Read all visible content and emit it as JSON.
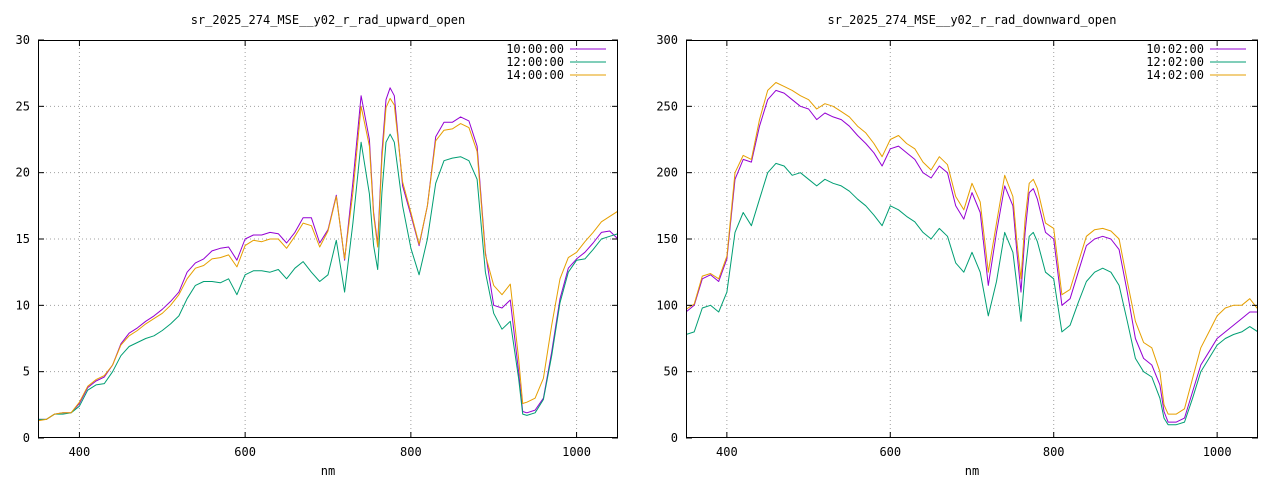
{
  "chart_data": [
    {
      "type": "line",
      "title": "sr_2025_274_MSE__y02_r_rad_upward_open",
      "xlabel": "nm",
      "ylabel": "",
      "xlim": [
        350,
        1050
      ],
      "ylim": [
        0,
        30
      ],
      "xticks": [
        400,
        600,
        800,
        1000
      ],
      "yticks": [
        0,
        5,
        10,
        15,
        20,
        25,
        30
      ],
      "grid": true,
      "legend": "top-right",
      "series": [
        {
          "name": "10:00:00",
          "color": "#9400d3",
          "x": [
            350,
            360,
            370,
            380,
            390,
            400,
            410,
            420,
            430,
            440,
            450,
            460,
            470,
            480,
            490,
            500,
            510,
            520,
            530,
            540,
            550,
            560,
            570,
            580,
            590,
            600,
            610,
            620,
            630,
            640,
            650,
            660,
            670,
            680,
            690,
            700,
            710,
            720,
            730,
            740,
            750,
            755,
            760,
            765,
            770,
            775,
            780,
            790,
            800,
            810,
            820,
            830,
            840,
            850,
            860,
            870,
            880,
            890,
            900,
            910,
            920,
            930,
            935,
            940,
            950,
            960,
            970,
            980,
            990,
            1000,
            1010,
            1020,
            1030,
            1040,
            1050
          ],
          "y": [
            1.4,
            1.4,
            1.8,
            1.9,
            1.9,
            2.6,
            3.8,
            4.3,
            4.6,
            5.5,
            7.1,
            7.9,
            8.3,
            8.8,
            9.2,
            9.7,
            10.3,
            11.0,
            12.5,
            13.2,
            13.5,
            14.1,
            14.3,
            14.4,
            13.4,
            15.0,
            15.3,
            15.3,
            15.5,
            15.4,
            14.7,
            15.5,
            16.6,
            16.6,
            14.7,
            15.7,
            18.3,
            13.4,
            19.3,
            25.8,
            22.5,
            17.0,
            14.6,
            21.5,
            25.5,
            26.4,
            25.8,
            19.0,
            16.8,
            14.5,
            17.5,
            22.7,
            23.8,
            23.8,
            24.2,
            23.9,
            22.0,
            14.0,
            10.0,
            9.8,
            10.4,
            5.0,
            2.0,
            1.9,
            2.1,
            3.0,
            6.5,
            10.5,
            12.8,
            13.5,
            14.0,
            14.7,
            15.5,
            15.6,
            15.0
          ]
        },
        {
          "name": "12:00:00",
          "color": "#009e73",
          "x": [
            350,
            360,
            370,
            380,
            390,
            400,
            410,
            420,
            430,
            440,
            450,
            460,
            470,
            480,
            490,
            500,
            510,
            520,
            530,
            540,
            550,
            560,
            570,
            580,
            590,
            600,
            610,
            620,
            630,
            640,
            650,
            660,
            670,
            680,
            690,
            700,
            710,
            720,
            730,
            740,
            750,
            755,
            760,
            765,
            770,
            775,
            780,
            790,
            800,
            810,
            820,
            830,
            840,
            850,
            860,
            870,
            880,
            890,
            900,
            910,
            920,
            930,
            935,
            940,
            950,
            960,
            970,
            980,
            990,
            1000,
            1010,
            1020,
            1030,
            1040,
            1050
          ],
          "y": [
            1.4,
            1.4,
            1.8,
            1.8,
            1.9,
            2.4,
            3.6,
            4.0,
            4.1,
            5.0,
            6.2,
            6.9,
            7.2,
            7.5,
            7.7,
            8.1,
            8.6,
            9.2,
            10.5,
            11.5,
            11.8,
            11.8,
            11.7,
            12.0,
            10.8,
            12.3,
            12.6,
            12.6,
            12.5,
            12.7,
            12.0,
            12.8,
            13.3,
            12.5,
            11.8,
            12.3,
            14.9,
            11.0,
            16.2,
            22.3,
            18.4,
            14.5,
            12.7,
            18.5,
            22.3,
            22.9,
            22.3,
            17.5,
            14.3,
            12.3,
            15.0,
            19.2,
            20.9,
            21.1,
            21.2,
            20.9,
            19.5,
            12.5,
            9.4,
            8.2,
            8.8,
            4.5,
            1.8,
            1.7,
            1.9,
            2.9,
            6.2,
            10.2,
            12.5,
            13.4,
            13.5,
            14.2,
            15.0,
            15.2,
            15.4
          ]
        },
        {
          "name": "14:00:00",
          "color": "#e69f00",
          "x": [
            350,
            360,
            370,
            380,
            390,
            400,
            410,
            420,
            430,
            440,
            450,
            460,
            470,
            480,
            490,
            500,
            510,
            520,
            530,
            540,
            550,
            560,
            570,
            580,
            590,
            600,
            610,
            620,
            630,
            640,
            650,
            660,
            670,
            680,
            690,
            700,
            710,
            720,
            730,
            740,
            750,
            755,
            760,
            765,
            770,
            775,
            780,
            790,
            800,
            810,
            820,
            830,
            840,
            850,
            860,
            870,
            880,
            890,
            900,
            910,
            920,
            930,
            935,
            940,
            950,
            960,
            970,
            980,
            990,
            1000,
            1010,
            1020,
            1030,
            1040,
            1050
          ],
          "y": [
            1.3,
            1.4,
            1.8,
            1.9,
            1.9,
            2.7,
            3.9,
            4.4,
            4.7,
            5.5,
            7.0,
            7.7,
            8.1,
            8.6,
            9.0,
            9.4,
            10.0,
            10.8,
            12.0,
            12.8,
            13.0,
            13.5,
            13.6,
            13.8,
            12.9,
            14.5,
            14.9,
            14.8,
            15.0,
            15.0,
            14.3,
            15.2,
            16.2,
            16.0,
            14.4,
            15.6,
            18.2,
            13.5,
            18.5,
            25.0,
            22.0,
            16.8,
            14.4,
            21.0,
            24.9,
            25.6,
            25.1,
            19.3,
            17.0,
            14.6,
            17.5,
            22.4,
            23.2,
            23.3,
            23.7,
            23.4,
            21.6,
            13.8,
            11.5,
            10.8,
            11.6,
            6.0,
            2.6,
            2.7,
            3.0,
            4.5,
            8.5,
            12.0,
            13.6,
            14.0,
            14.8,
            15.5,
            16.3,
            16.7,
            17.1
          ]
        }
      ]
    },
    {
      "type": "line",
      "title": "sr_2025_274_MSE__y02_r_rad_downward_open",
      "xlabel": "nm",
      "ylabel": "",
      "xlim": [
        350,
        1050
      ],
      "ylim": [
        0,
        300
      ],
      "xticks": [
        400,
        600,
        800,
        1000
      ],
      "yticks": [
        0,
        50,
        100,
        150,
        200,
        250,
        300
      ],
      "grid": true,
      "legend": "top-right",
      "series": [
        {
          "name": "10:02:00",
          "color": "#9400d3",
          "x": [
            350,
            360,
            370,
            380,
            390,
            400,
            410,
            420,
            430,
            440,
            450,
            460,
            470,
            480,
            490,
            500,
            510,
            520,
            530,
            540,
            550,
            560,
            570,
            580,
            590,
            600,
            610,
            620,
            630,
            640,
            650,
            660,
            670,
            680,
            690,
            700,
            710,
            720,
            730,
            740,
            750,
            755,
            760,
            765,
            770,
            775,
            780,
            790,
            800,
            810,
            820,
            830,
            840,
            850,
            860,
            870,
            880,
            890,
            900,
            910,
            920,
            930,
            935,
            940,
            950,
            960,
            970,
            980,
            990,
            1000,
            1010,
            1020,
            1030,
            1040,
            1050
          ],
          "y": [
            95,
            100,
            120,
            123,
            118,
            135,
            195,
            210,
            208,
            235,
            255,
            262,
            260,
            255,
            250,
            248,
            240,
            245,
            242,
            240,
            235,
            228,
            222,
            215,
            205,
            218,
            220,
            215,
            210,
            200,
            196,
            205,
            200,
            175,
            165,
            185,
            170,
            115,
            155,
            190,
            175,
            140,
            110,
            155,
            185,
            188,
            180,
            155,
            150,
            100,
            105,
            125,
            145,
            150,
            152,
            150,
            142,
            110,
            75,
            60,
            55,
            40,
            20,
            12,
            12,
            15,
            35,
            55,
            65,
            75,
            80,
            85,
            90,
            95,
            95
          ]
        },
        {
          "name": "12:02:00",
          "color": "#009e73",
          "x": [
            350,
            360,
            370,
            380,
            390,
            400,
            410,
            420,
            430,
            440,
            450,
            460,
            470,
            480,
            490,
            500,
            510,
            520,
            530,
            540,
            550,
            560,
            570,
            580,
            590,
            600,
            610,
            620,
            630,
            640,
            650,
            660,
            670,
            680,
            690,
            700,
            710,
            720,
            730,
            740,
            750,
            755,
            760,
            765,
            770,
            775,
            780,
            790,
            800,
            810,
            820,
            830,
            840,
            850,
            860,
            870,
            880,
            890,
            900,
            910,
            920,
            930,
            935,
            940,
            950,
            960,
            970,
            980,
            990,
            1000,
            1010,
            1020,
            1030,
            1040,
            1050
          ],
          "y": [
            78,
            80,
            98,
            100,
            95,
            110,
            155,
            170,
            160,
            180,
            200,
            207,
            205,
            198,
            200,
            195,
            190,
            195,
            192,
            190,
            186,
            180,
            175,
            168,
            160,
            175,
            172,
            167,
            163,
            155,
            150,
            158,
            152,
            132,
            125,
            140,
            125,
            92,
            118,
            155,
            140,
            115,
            88,
            125,
            152,
            155,
            148,
            125,
            120,
            80,
            85,
            102,
            118,
            125,
            128,
            125,
            115,
            88,
            60,
            50,
            46,
            30,
            15,
            10,
            10,
            12,
            30,
            50,
            60,
            70,
            75,
            78,
            80,
            84,
            80
          ]
        },
        {
          "name": "14:02:00",
          "color": "#e69f00",
          "x": [
            350,
            360,
            370,
            380,
            390,
            400,
            410,
            420,
            430,
            440,
            450,
            460,
            470,
            480,
            490,
            500,
            510,
            520,
            530,
            540,
            550,
            560,
            570,
            580,
            590,
            600,
            610,
            620,
            630,
            640,
            650,
            660,
            670,
            680,
            690,
            700,
            710,
            720,
            730,
            740,
            750,
            755,
            760,
            765,
            770,
            775,
            780,
            790,
            800,
            810,
            820,
            830,
            840,
            850,
            860,
            870,
            880,
            890,
            900,
            910,
            920,
            930,
            935,
            940,
            950,
            960,
            970,
            980,
            990,
            1000,
            1010,
            1020,
            1030,
            1040,
            1050
          ],
          "y": [
            97,
            101,
            122,
            124,
            120,
            137,
            200,
            213,
            210,
            240,
            262,
            268,
            265,
            262,
            258,
            255,
            248,
            252,
            250,
            246,
            242,
            235,
            230,
            222,
            212,
            225,
            228,
            222,
            218,
            208,
            202,
            212,
            206,
            182,
            172,
            192,
            178,
            125,
            162,
            198,
            182,
            148,
            120,
            165,
            192,
            195,
            188,
            162,
            158,
            108,
            112,
            132,
            152,
            157,
            158,
            156,
            150,
            118,
            88,
            72,
            68,
            50,
            25,
            18,
            18,
            22,
            45,
            68,
            80,
            92,
            98,
            100,
            100,
            105,
            97
          ]
        }
      ]
    }
  ]
}
